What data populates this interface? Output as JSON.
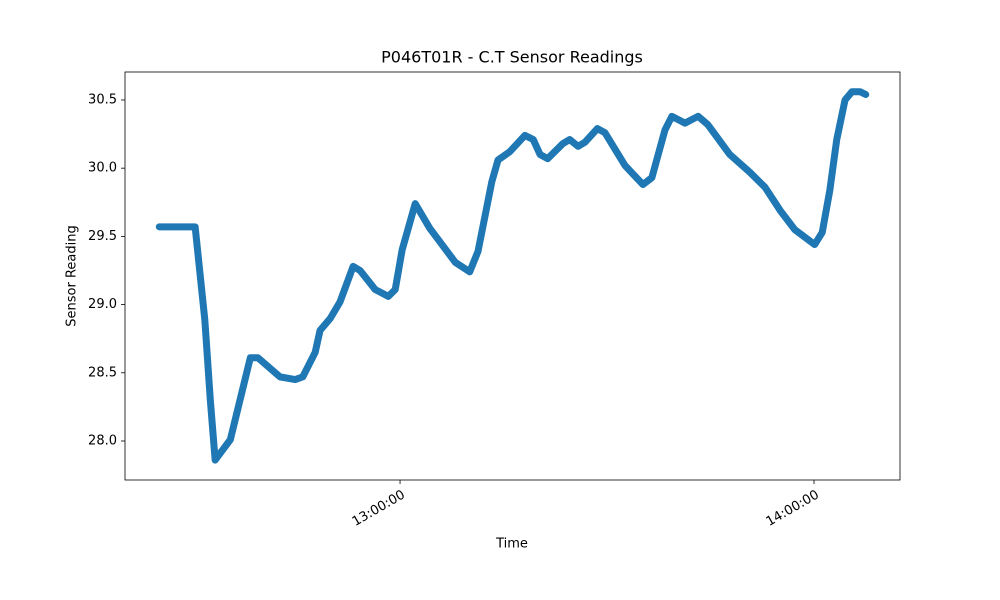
{
  "chart_data": {
    "type": "line",
    "title": "P046T01R - C.T Sensor Readings",
    "xlabel": "Time",
    "ylabel": "Sensor Reading",
    "color": "#1f77b4",
    "x": [
      "12:25:06",
      "12:30:18",
      "12:31:42",
      "12:32:30",
      "12:33:12",
      "12:35:24",
      "12:38:18",
      "12:39:24",
      "12:42:36",
      "12:44:48",
      "12:45:54",
      "12:47:42",
      "12:48:24",
      "12:49:54",
      "12:51:18",
      "12:53:12",
      "12:54:12",
      "12:56:24",
      "12:58:18",
      "12:59:18",
      "13:00:18",
      "13:02:12",
      "13:04:18",
      "13:08:00",
      "13:10:06",
      "13:11:18",
      "13:13:18",
      "13:14:12",
      "13:15:54",
      "13:18:06",
      "13:19:18",
      "13:20:18",
      "13:21:24",
      "13:23:36",
      "13:24:36",
      "13:25:48",
      "13:26:48",
      "13:28:36",
      "13:29:42",
      "13:32:36",
      "13:35:12",
      "13:36:30",
      "13:38:24",
      "13:39:24",
      "13:41:18",
      "13:43:12",
      "13:44:36",
      "13:47:48",
      "13:50:42",
      "13:52:54",
      "13:55:06",
      "13:57:12",
      "14:00:06",
      "14:01:12",
      "14:02:18",
      "14:03:18",
      "14:04:30",
      "14:05:30",
      "14:06:42",
      "14:07:30"
    ],
    "values": [
      29.57,
      29.57,
      28.89,
      28.3,
      27.86,
      28.01,
      28.61,
      28.61,
      28.47,
      28.45,
      28.47,
      28.65,
      28.81,
      28.9,
      29.02,
      29.28,
      29.25,
      29.11,
      29.06,
      29.11,
      29.4,
      29.74,
      29.56,
      29.31,
      29.24,
      29.39,
      29.9,
      30.06,
      30.12,
      30.24,
      30.21,
      30.1,
      30.07,
      30.18,
      30.21,
      30.16,
      30.19,
      30.29,
      30.26,
      30.02,
      29.88,
      29.93,
      30.28,
      30.38,
      30.33,
      30.38,
      30.32,
      30.1,
      29.97,
      29.86,
      29.69,
      29.55,
      29.44,
      29.53,
      29.84,
      30.21,
      30.5,
      30.56,
      30.56,
      30.54
    ],
    "xlim": [
      "12:20:08",
      "14:12:28"
    ],
    "xticks": [
      "13:00:00",
      "14:00:00"
    ],
    "ylim": [
      27.714,
      30.705
    ],
    "yticks": [
      {
        "value": 28,
        "label": "28.0"
      },
      28.5,
      {
        "value": 29,
        "label": "29.0"
      },
      29.5,
      {
        "value": 30,
        "label": "30.0"
      },
      30.5
    ]
  }
}
